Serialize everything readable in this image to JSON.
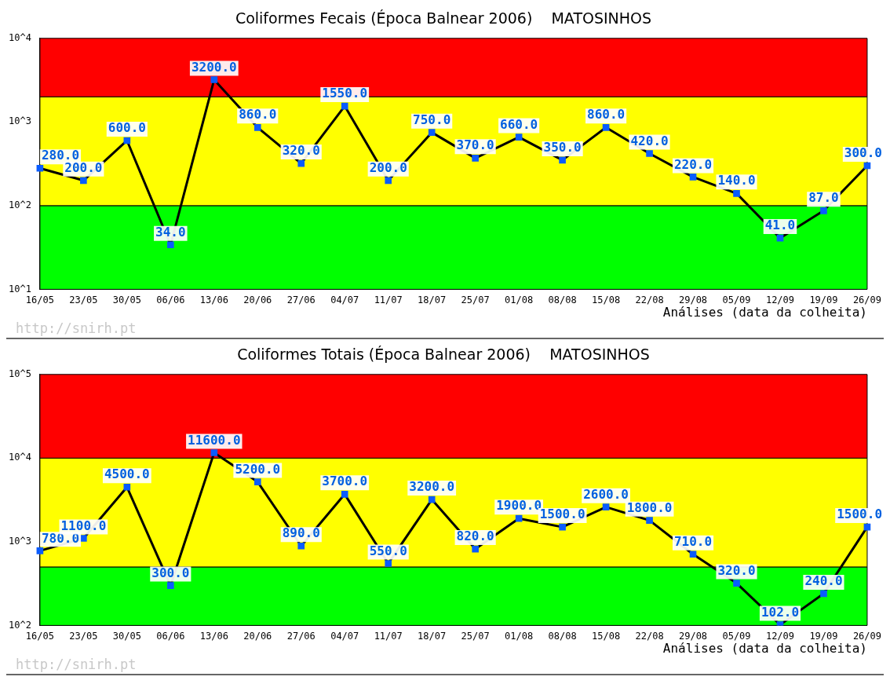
{
  "chart_data": [
    {
      "type": "line",
      "title": "Coliformes Fecais (Época Balnear 2006)    MATOSINHOS",
      "xlabel": "Análises (data da colheita)",
      "categories": [
        "16/05",
        "23/05",
        "30/05",
        "06/06",
        "13/06",
        "20/06",
        "27/06",
        "04/07",
        "11/07",
        "18/07",
        "25/07",
        "01/08",
        "08/08",
        "15/08",
        "22/08",
        "29/08",
        "05/09",
        "12/09",
        "19/09",
        "26/09"
      ],
      "series": [
        {
          "color": "#000000",
          "values": [
            280,
            200,
            600,
            34,
            3200,
            860,
            320,
            1550,
            200,
            750,
            370,
            660,
            350,
            860,
            420,
            220,
            140,
            41,
            87,
            300
          ],
          "value_labels": [
            "280.0",
            "200.0",
            "600.0",
            "34.0",
            "3200.0",
            "860.0",
            "320.0",
            "1550.0",
            "200.0",
            "750.0",
            "370.0",
            "660.0",
            "350.0",
            "860.0",
            "420.0",
            "220.0",
            "140.0",
            "41.0",
            "87.0",
            "300.0"
          ]
        }
      ],
      "log": "y",
      "ylim": [
        10,
        10000
      ],
      "yticks": [
        {
          "value": 10,
          "label": "10^1"
        },
        {
          "value": 100,
          "label": "10^2"
        },
        {
          "value": 1000,
          "label": "10^3"
        },
        {
          "value": 10000,
          "label": "10^4"
        }
      ],
      "bands": [
        {
          "axis": "y",
          "from": 10,
          "to": 100,
          "color": "#00ff00"
        },
        {
          "axis": "y",
          "from": 100,
          "to": 2000,
          "color": "#ffff00"
        },
        {
          "axis": "y",
          "from": 2000,
          "to": 10000,
          "color": "#ff0000"
        }
      ],
      "marker": "square",
      "grid": false,
      "legend": false,
      "annotations": [
        "http://snirh.pt"
      ]
    },
    {
      "type": "line",
      "title": "Coliformes Totais (Época Balnear 2006)    MATOSINHOS",
      "xlabel": "Análises (data da colheita)",
      "categories": [
        "16/05",
        "23/05",
        "30/05",
        "06/06",
        "13/06",
        "20/06",
        "27/06",
        "04/07",
        "11/07",
        "18/07",
        "25/07",
        "01/08",
        "08/08",
        "15/08",
        "22/08",
        "29/08",
        "05/09",
        "12/09",
        "19/09",
        "26/09"
      ],
      "series": [
        {
          "color": "#000000",
          "values": [
            780,
            1100,
            4500,
            300,
            11600,
            5200,
            890,
            3700,
            550,
            3200,
            820,
            1900,
            1500,
            2600,
            1800,
            710,
            320,
            102,
            240,
            1500
          ],
          "value_labels": [
            "780.0",
            "1100.0",
            "4500.0",
            "300.0",
            "11600.0",
            "5200.0",
            "890.0",
            "3700.0",
            "550.0",
            "3200.0",
            "820.0",
            "1900.0",
            "1500.0",
            "2600.0",
            "1800.0",
            "710.0",
            "320.0",
            "102.0",
            "240.0",
            "1500.0"
          ]
        }
      ],
      "log": "y",
      "ylim": [
        100,
        100000
      ],
      "yticks": [
        {
          "value": 100,
          "label": "10^2"
        },
        {
          "value": 1000,
          "label": "10^3"
        },
        {
          "value": 10000,
          "label": "10^4"
        },
        {
          "value": 100000,
          "label": "10^5"
        }
      ],
      "bands": [
        {
          "axis": "y",
          "from": 100,
          "to": 500,
          "color": "#00ff00"
        },
        {
          "axis": "y",
          "from": 500,
          "to": 10000,
          "color": "#ffff00"
        },
        {
          "axis": "y",
          "from": 10000,
          "to": 100000,
          "color": "#ff0000"
        }
      ],
      "marker": "square",
      "grid": false,
      "legend": false,
      "annotations": [
        "http://snirh.pt"
      ]
    }
  ]
}
